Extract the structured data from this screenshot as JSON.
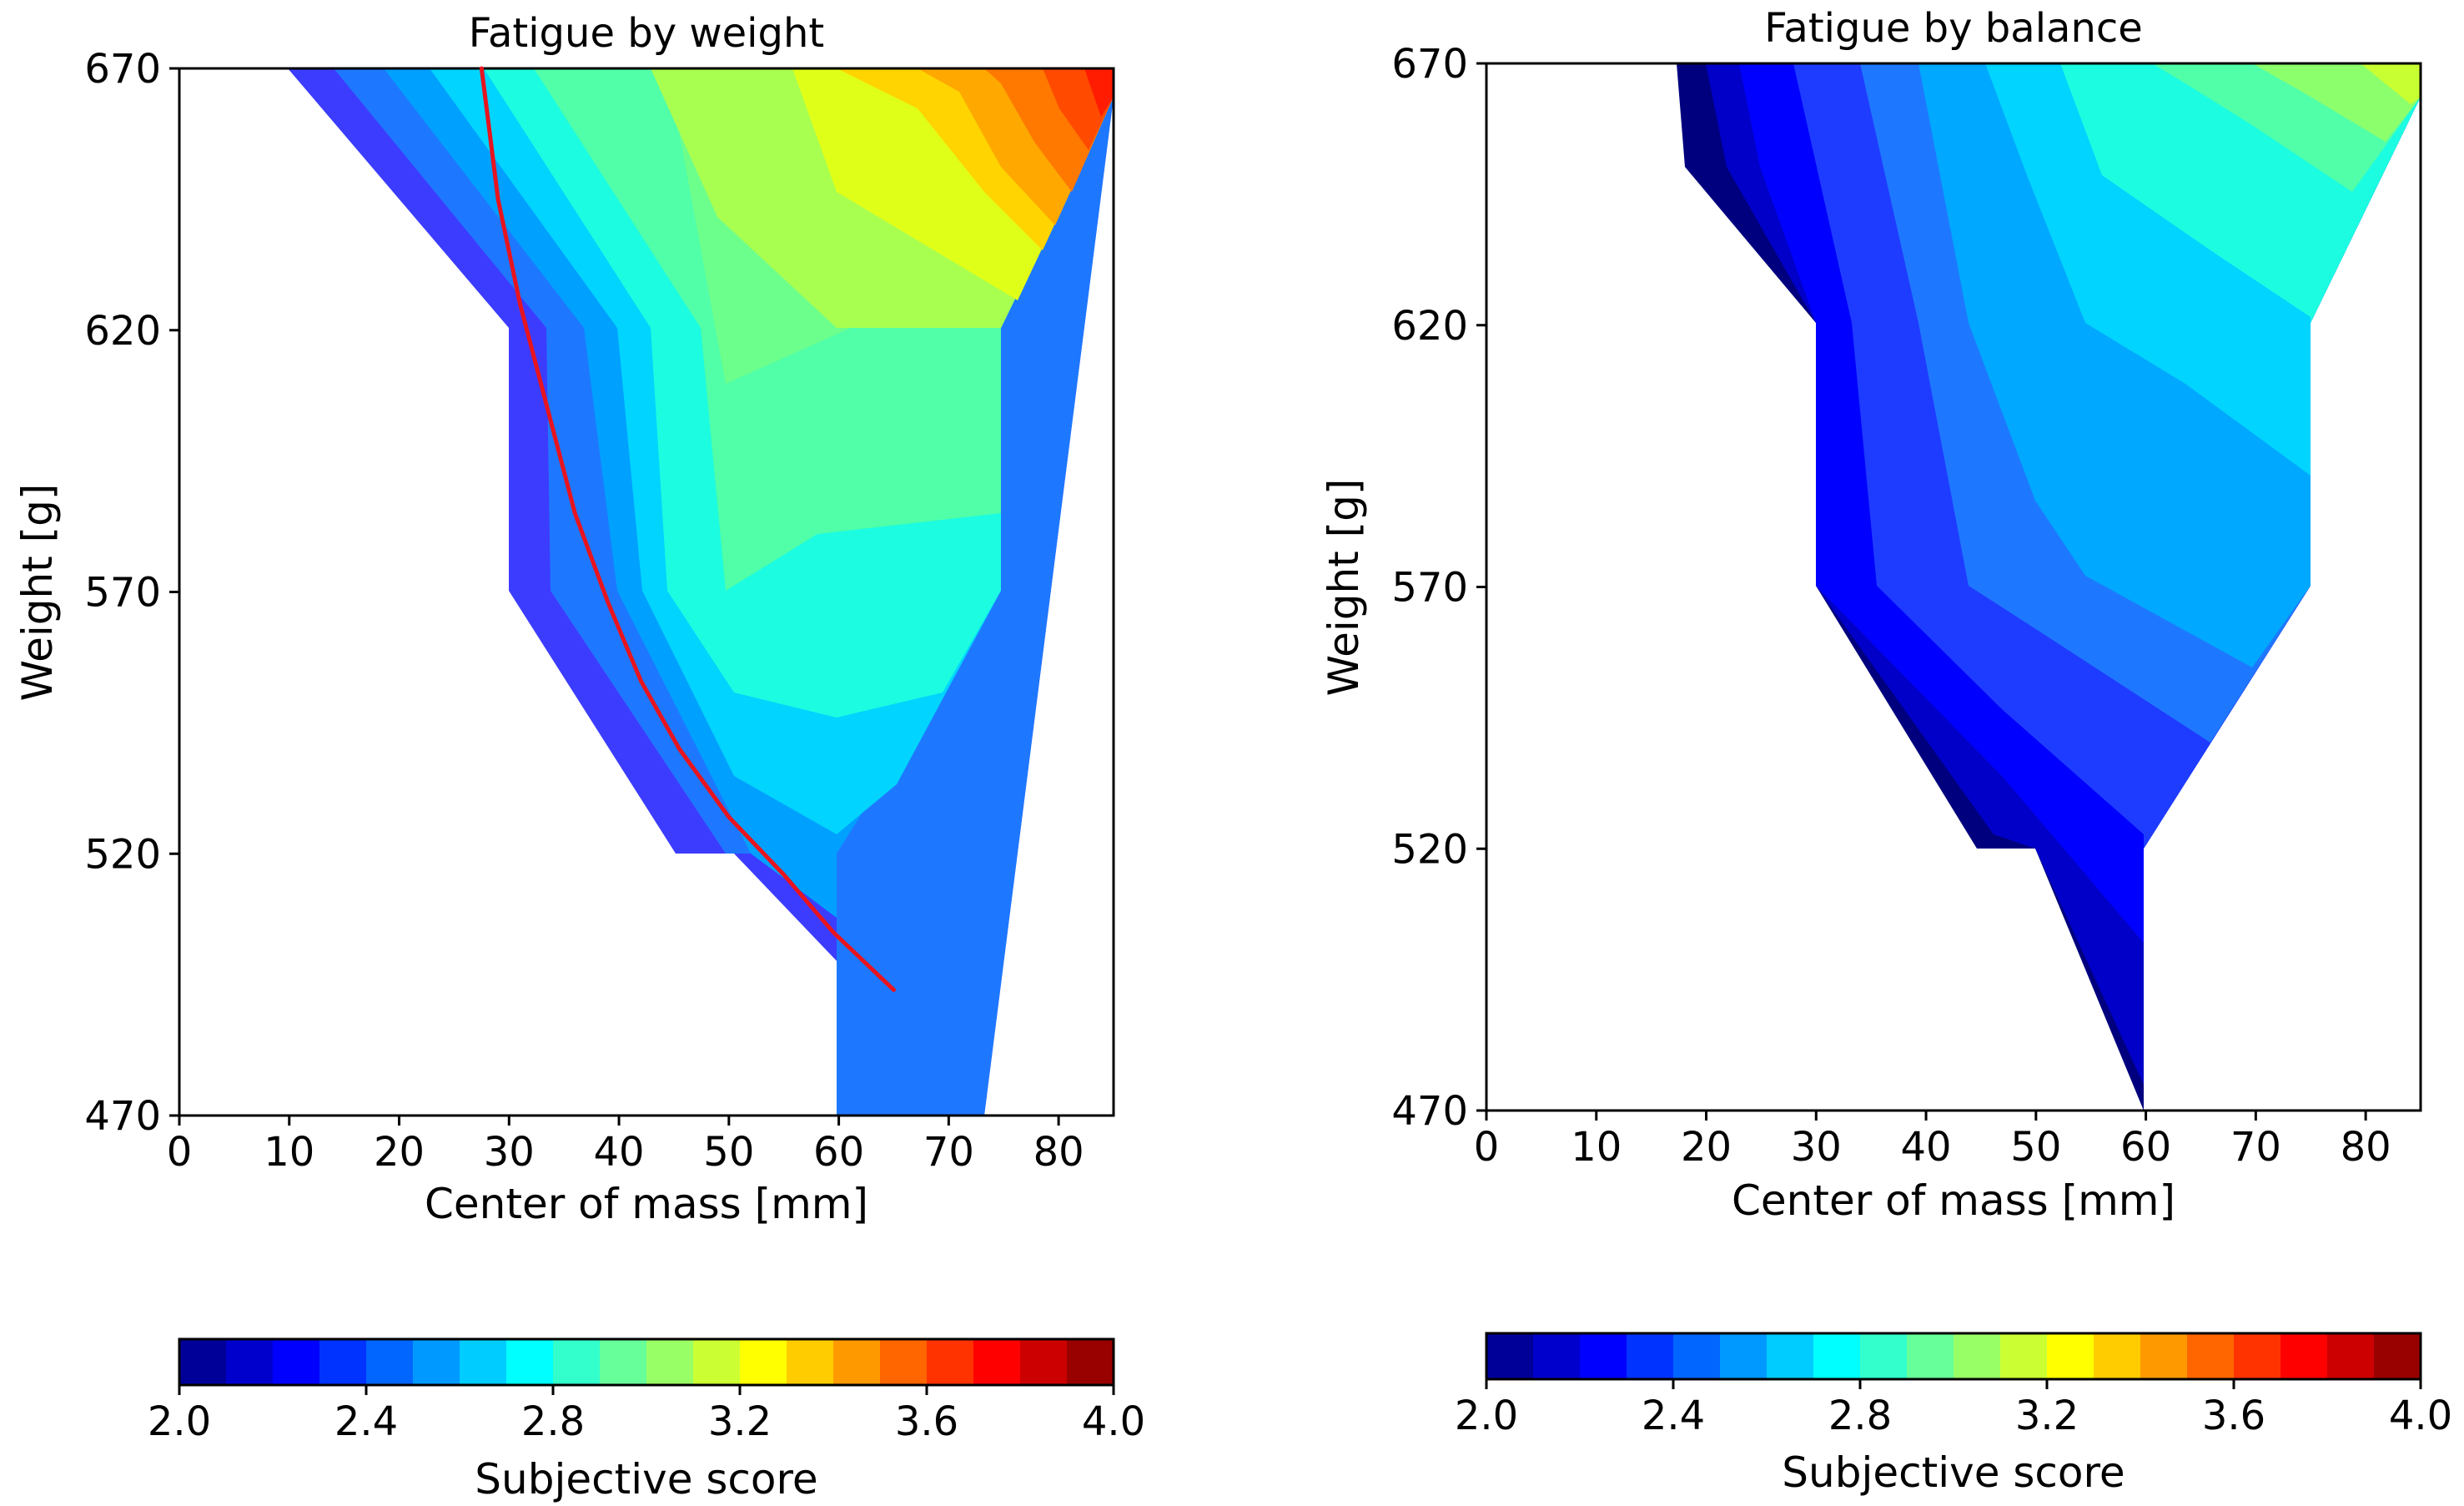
{
  "chart_data": [
    {
      "type": "contourf",
      "title": "Fatigue by weight",
      "xlabel": "Center of mass [mm]",
      "ylabel": "Weight [g]",
      "xlim": [
        0,
        85
      ],
      "ylim": [
        470,
        670
      ],
      "xticks": [
        0,
        10,
        20,
        30,
        40,
        50,
        60,
        70,
        80
      ],
      "yticks": [
        470,
        520,
        570,
        620,
        670
      ],
      "grid_points": [
        {
          "weight": 670,
          "com": [
            10,
            20,
            30,
            40,
            50,
            60,
            70,
            85
          ],
          "score": [
            2.3,
            2.55,
            2.8,
            3.05,
            3.2,
            3.4,
            3.6,
            3.95
          ]
        },
        {
          "weight": 620,
          "com": [
            30,
            40,
            50,
            60,
            75
          ],
          "score": [
            2.6,
            2.85,
            3.0,
            3.05,
            3.25
          ]
        },
        {
          "weight": 570,
          "com": [
            30,
            40,
            50,
            60,
            75
          ],
          "score": [
            2.3,
            2.6,
            2.8,
            2.9,
            3.0
          ]
        },
        {
          "weight": 520,
          "com": [
            45,
            50,
            60
          ],
          "score": [
            2.2,
            2.4,
            2.5
          ]
        },
        {
          "weight": 470,
          "com": [
            60
          ],
          "score": [
            2.3
          ]
        }
      ],
      "overlay_line": {
        "color": "#e8141e",
        "x": [
          27.5,
          29,
          31,
          33.5,
          36,
          39,
          42,
          45.5,
          50,
          55,
          59.5,
          65
        ],
        "y": [
          670,
          645,
          625,
          605,
          585,
          568,
          553,
          540,
          527,
          516,
          505,
          494
        ]
      },
      "colorbar": {
        "label": "Subjective score",
        "min": 2.0,
        "max": 4.0,
        "ticks": [
          "2.0",
          "2.4",
          "2.8",
          "3.2",
          "3.6",
          "4.0"
        ],
        "levels": 20,
        "colormap": "jet",
        "orientation": "horizontal"
      }
    },
    {
      "type": "contourf",
      "title": "Fatigue by balance",
      "xlabel": "Center of mass [mm]",
      "ylabel": "Weight [g]",
      "xlim": [
        0,
        85
      ],
      "ylim": [
        470,
        670
      ],
      "xticks": [
        0,
        10,
        20,
        30,
        40,
        50,
        60,
        70,
        80
      ],
      "yticks": [
        470,
        520,
        570,
        620,
        670
      ],
      "grid_points": [
        {
          "weight": 670,
          "com": [
            18,
            30,
            40,
            50,
            60,
            70,
            85
          ],
          "score": [
            2.05,
            2.5,
            2.65,
            2.8,
            2.95,
            3.05,
            3.2
          ]
        },
        {
          "weight": 620,
          "com": [
            30,
            40,
            50,
            60,
            75
          ],
          "score": [
            2.2,
            2.45,
            2.6,
            2.75,
            2.85
          ]
        },
        {
          "weight": 570,
          "com": [
            30,
            40,
            50,
            60,
            75
          ],
          "score": [
            2.25,
            2.35,
            2.45,
            2.55,
            2.65
          ]
        },
        {
          "weight": 520,
          "com": [
            45,
            50,
            60
          ],
          "score": [
            2.15,
            2.22,
            2.3
          ]
        },
        {
          "weight": 470,
          "com": [
            60
          ],
          "score": [
            2.25
          ]
        }
      ],
      "colorbar": {
        "label": "Subjective score",
        "min": 2.0,
        "max": 4.0,
        "ticks": [
          "2.0",
          "2.4",
          "2.8",
          "3.2",
          "3.6",
          "4.0"
        ],
        "levels": 20,
        "colormap": "jet",
        "orientation": "horizontal"
      }
    }
  ]
}
